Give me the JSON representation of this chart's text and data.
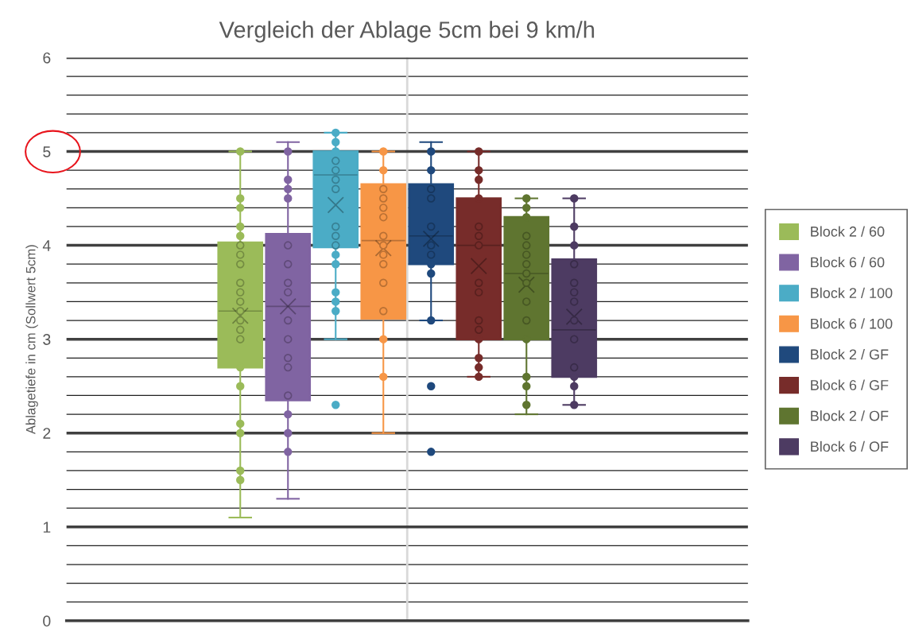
{
  "chart_data": {
    "type": "box",
    "title": "Vergleich der Ablage 5cm bei 9 km/h",
    "ylabel": "Ablagetiefe in cm (Sollwert 5cm)",
    "categories": [
      null
    ],
    "series": [
      {
        "name": "Block 2 / 60",
        "color": "#9bbb59",
        "boxes": [
          {
            "low": 1.1,
            "q1": 2.7,
            "median": 3.3,
            "q3": 4.03,
            "high": 5.0,
            "mean": 3.25,
            "outliers": [
              5.0,
              4.5,
              4.4,
              4.2,
              4.1,
              4.0,
              3.9,
              3.8,
              3.6,
              3.5,
              3.4,
              3.3,
              3.2,
              3.1,
              3.0,
              2.7,
              2.5,
              2.1,
              2.0,
              1.6,
              1.5
            ]
          }
        ]
      },
      {
        "name": "Block 6 / 60",
        "color": "#8064a2",
        "boxes": [
          {
            "low": 1.3,
            "q1": 2.35,
            "median": 3.35,
            "q3": 4.12,
            "high": 5.1,
            "mean": 3.35,
            "outliers": [
              5.0,
              4.7,
              4.6,
              4.5,
              4.0,
              3.8,
              3.6,
              3.5,
              3.2,
              3.0,
              2.8,
              2.7,
              2.4,
              2.2,
              2.0,
              1.8
            ]
          }
        ]
      },
      {
        "name": "Block 2 / 100",
        "color": "#4bacc6",
        "boxes": [
          {
            "low": 3.0,
            "q1": 3.98,
            "median": 4.75,
            "q3": 5.0,
            "high": 5.2,
            "mean": 4.43,
            "outliers": [
              5.2,
              5.1,
              5.0,
              4.9,
              4.8,
              4.7,
              4.6,
              4.2,
              4.1,
              4.0,
              3.9,
              3.8,
              3.5,
              3.4,
              3.3,
              2.3
            ]
          }
        ]
      },
      {
        "name": "Block 6 / 100",
        "color": "#f79646",
        "boxes": [
          {
            "low": 2.0,
            "q1": 3.22,
            "median": 4.05,
            "q3": 4.65,
            "high": 5.0,
            "mean": 3.97,
            "outliers": [
              5.0,
              4.8,
              4.6,
              4.5,
              4.4,
              4.3,
              4.1,
              4.0,
              3.9,
              3.8,
              3.6,
              3.3,
              3.0,
              2.6
            ]
          }
        ]
      },
      {
        "name": "Block 2 / GF",
        "color": "#1f497d",
        "boxes": [
          {
            "low": 3.2,
            "q1": 3.8,
            "median": 4.1,
            "q3": 4.65,
            "high": 5.1,
            "mean": 4.07,
            "outliers": [
              5.0,
              4.8,
              4.6,
              4.5,
              4.2,
              4.0,
              3.9,
              3.8,
              3.7,
              3.2,
              2.5,
              1.8
            ]
          }
        ]
      },
      {
        "name": "Block 6 / GF",
        "color": "#772c2a",
        "boxes": [
          {
            "low": 2.6,
            "q1": 3.0,
            "median": 4.0,
            "q3": 4.5,
            "high": 5.0,
            "mean": 3.78,
            "outliers": [
              5.0,
              4.8,
              4.7,
              4.5,
              4.2,
              4.1,
              4.0,
              3.6,
              3.5,
              3.2,
              3.1,
              3.0,
              2.8,
              2.7,
              2.6
            ]
          }
        ]
      },
      {
        "name": "Block 2 / OF",
        "color": "#5f7530",
        "boxes": [
          {
            "low": 2.2,
            "q1": 3.0,
            "median": 3.7,
            "q3": 4.3,
            "high": 4.5,
            "mean": 3.58,
            "outliers": [
              4.5,
              4.4,
              4.3,
              4.1,
              4.0,
              3.9,
              3.8,
              3.7,
              3.6,
              3.4,
              3.2,
              3.0,
              2.6,
              2.5,
              2.3
            ]
          }
        ]
      },
      {
        "name": "Block 6 / OF",
        "color": "#4d3b62",
        "boxes": [
          {
            "low": 2.3,
            "q1": 2.6,
            "median": 3.1,
            "q3": 3.85,
            "high": 4.5,
            "mean": 3.24,
            "outliers": [
              4.5,
              4.2,
              4.0,
              3.8,
              3.6,
              3.5,
              3.4,
              3.2,
              3.0,
              2.7,
              2.6,
              2.5,
              2.3
            ]
          }
        ]
      }
    ],
    "ylim": [
      0,
      6
    ],
    "yticks": [
      0,
      1,
      2,
      3,
      4,
      5,
      6
    ],
    "grid": true,
    "legend": "right",
    "marker": "circle"
  }
}
